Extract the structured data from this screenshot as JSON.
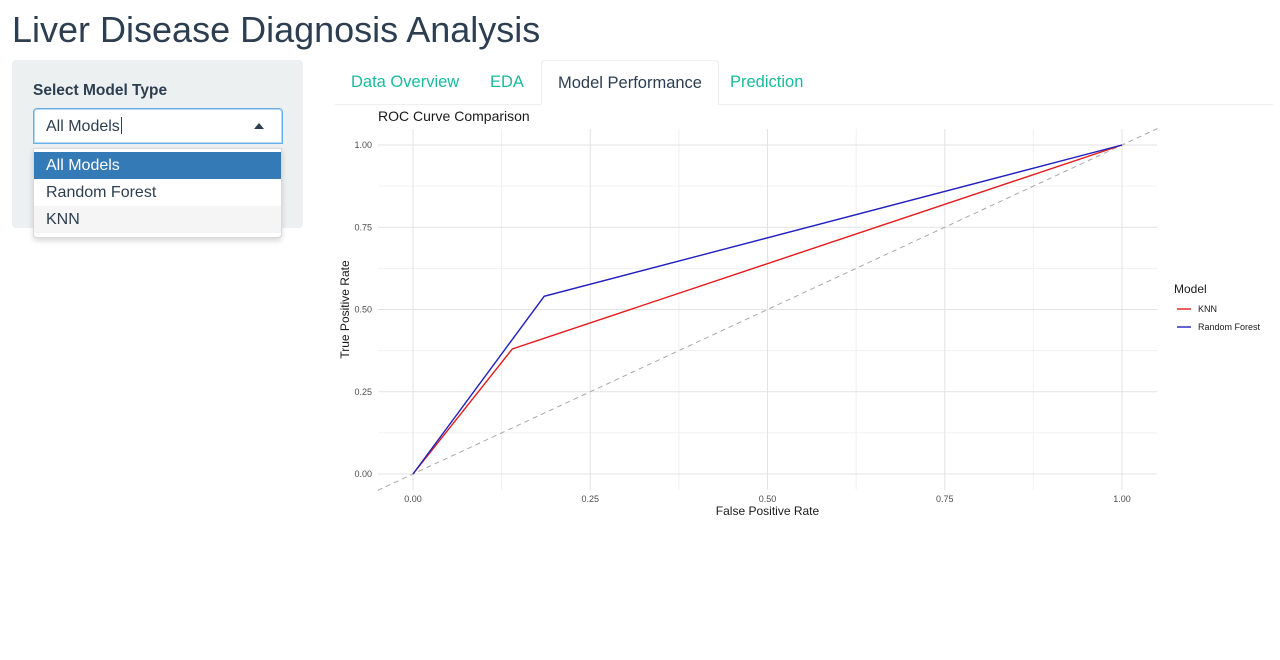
{
  "app": {
    "title": "Liver Disease Diagnosis Analysis"
  },
  "sidebar": {
    "select_label": "Select Model Type",
    "select_value": "All Models",
    "options": [
      "All Models",
      "Random Forest",
      "KNN"
    ]
  },
  "tabs": [
    {
      "label": "Data Overview"
    },
    {
      "label": "EDA"
    },
    {
      "label": "Model Performance"
    },
    {
      "label": "Prediction"
    }
  ],
  "colors": {
    "accent": "#18bc9c",
    "primary": "#2c3e50",
    "selected_option": "#337ab7",
    "knn": "#e41a1c",
    "random_forest": "#2020c0"
  },
  "chart_data": {
    "type": "line",
    "title": "ROC Curve Comparison",
    "xlabel": "False Positive Rate",
    "ylabel": "True Positive Rate",
    "xlim": [
      0,
      1
    ],
    "ylim": [
      0,
      1
    ],
    "xticks": [
      "0.00",
      "0.25",
      "0.50",
      "0.75",
      "1.00"
    ],
    "yticks": [
      "0.00",
      "0.25",
      "0.50",
      "0.75",
      "1.00"
    ],
    "grid": true,
    "legend": {
      "title": "Model",
      "position": "right"
    },
    "reference_line": {
      "style": "dashed",
      "x": [
        0,
        1
      ],
      "y": [
        0,
        1
      ]
    },
    "series": [
      {
        "name": "KNN",
        "color": "#e41a1c",
        "x": [
          0,
          0.14,
          1
        ],
        "y": [
          0,
          0.38,
          1
        ]
      },
      {
        "name": "Random Forest",
        "color": "#2020c0",
        "x": [
          0,
          0.185,
          1
        ],
        "y": [
          0,
          0.54,
          1
        ]
      }
    ]
  }
}
